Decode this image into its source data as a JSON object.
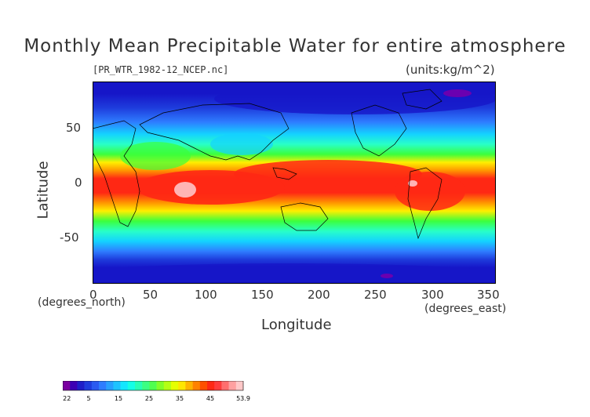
{
  "title": "Monthly Mean Precipitable Water for entire atmosphere",
  "file_label": "[PR_WTR_1982-12_NCEP.nc]",
  "units_label": "(units:kg/m^2)",
  "axes": {
    "y_title": "Latitude",
    "x_title": "Longitude",
    "y_unit": "(degrees_north)",
    "x_unit": "(degrees_east)",
    "y_ticks": [
      "50",
      "0",
      "-50"
    ],
    "x_ticks": [
      "0",
      "50",
      "100",
      "150",
      "200",
      "250",
      "300",
      "350"
    ]
  },
  "colorbar": {
    "labels": [
      "-2.22",
      "5",
      "15",
      "25",
      "35",
      "45",
      "53.9"
    ],
    "colors": [
      "#7a00a0",
      "#3c00b4",
      "#1e1ec8",
      "#1e3cdc",
      "#2a5af0",
      "#2e7cff",
      "#28a0ff",
      "#1ec3ff",
      "#14e6ff",
      "#14ffe6",
      "#28ffb4",
      "#3cff82",
      "#50ff50",
      "#82ff28",
      "#b4ff14",
      "#e6ff00",
      "#ffe600",
      "#ffb400",
      "#ff8200",
      "#ff5000",
      "#ff2814",
      "#ff3c3c",
      "#ff6e6e",
      "#ffa0a0",
      "#ffc8c8"
    ]
  },
  "map_colors": {
    "deep_blue": "#1616c8",
    "blue": "#1e3cdc",
    "mid_blue": "#2e7cff",
    "cyan": "#14d2ff",
    "aqua": "#28ffc8",
    "green": "#3cff3c",
    "yellow": "#ffee00",
    "orange": "#ff9600",
    "red": "#ff2814",
    "pink": "#ffb4b4",
    "purple": "#6a00b0"
  },
  "chart_data": {
    "type": "heatmap",
    "title": "Monthly Mean Precipitable Water for entire atmosphere",
    "xlabel": "Longitude",
    "ylabel": "Latitude",
    "xlim": [
      0,
      357.5
    ],
    "ylim": [
      -90,
      90
    ],
    "zlim": [
      -2.22,
      53.9
    ],
    "zunits": "kg/m^2",
    "zonal_profile": [
      {
        "lat": 90,
        "value": 3
      },
      {
        "lat": 70,
        "value": 4
      },
      {
        "lat": 55,
        "value": 9
      },
      {
        "lat": 40,
        "value": 16
      },
      {
        "lat": 25,
        "value": 28
      },
      {
        "lat": 10,
        "value": 44
      },
      {
        "lat": 0,
        "value": 48
      },
      {
        "lat": -10,
        "value": 46
      },
      {
        "lat": -25,
        "value": 32
      },
      {
        "lat": -40,
        "value": 19
      },
      {
        "lat": -55,
        "value": 12
      },
      {
        "lat": -70,
        "value": 5
      },
      {
        "lat": -90,
        "value": 2
      }
    ]
  }
}
